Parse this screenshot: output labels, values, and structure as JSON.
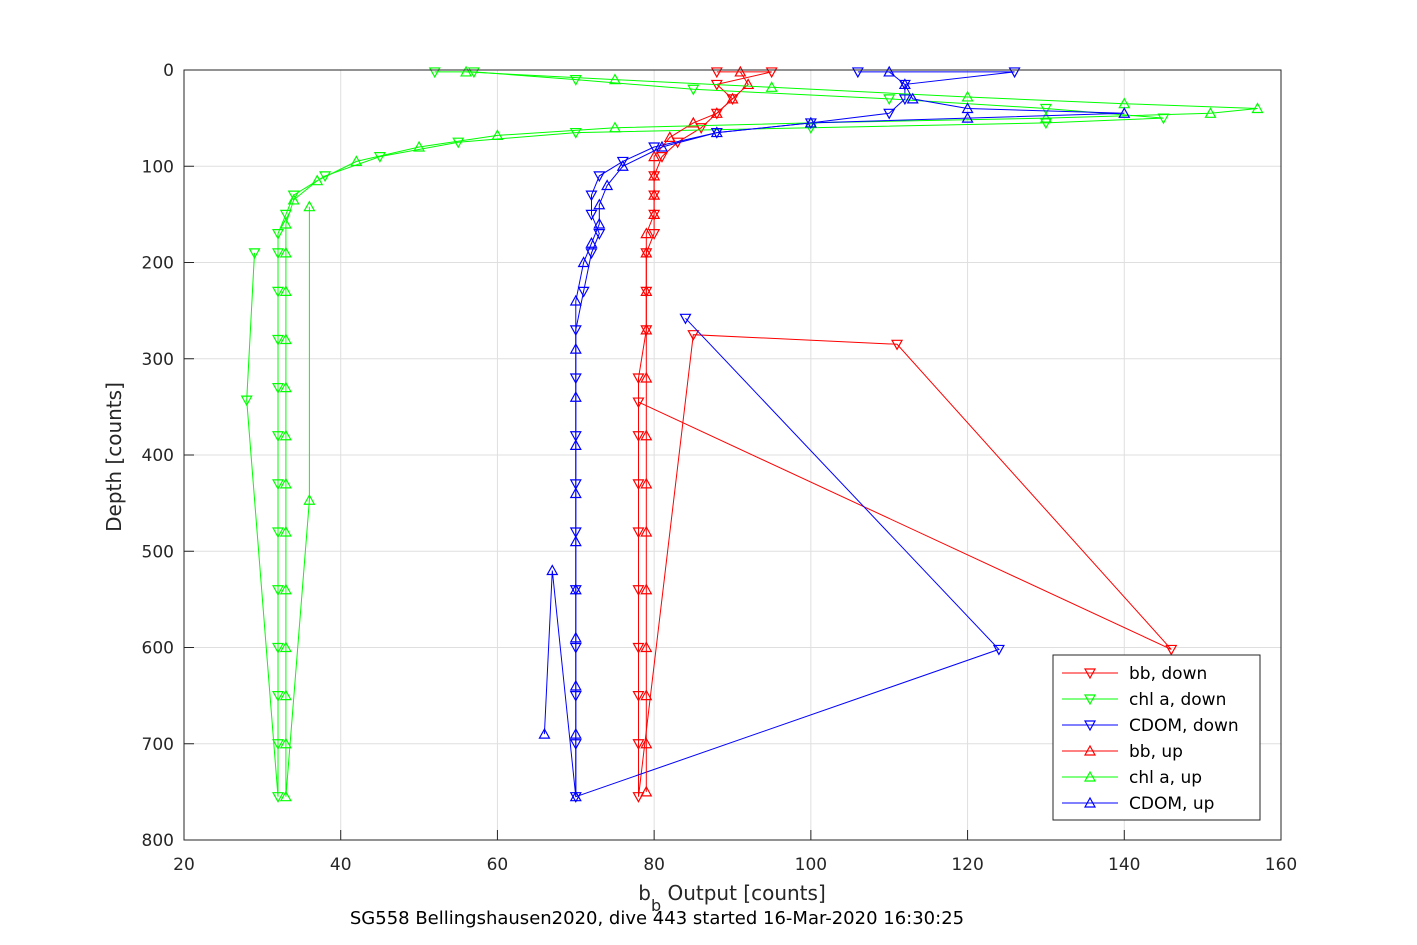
{
  "chart_data": {
    "type": "scatter",
    "title": "",
    "xlabel_main": "b",
    "xlabel_sub": "b",
    "xlabel_rest": " Output [counts]",
    "ylabel": "Depth [counts]",
    "caption": "SG558 Bellingshausen2020, dive 443 started 16-Mar-2020 16:30:25",
    "xlim": [
      20,
      160
    ],
    "ylim": [
      0,
      800
    ],
    "y_reversed": true,
    "grid": true,
    "xticks": [
      "20",
      "40",
      "60",
      "80",
      "100",
      "120",
      "140",
      "160"
    ],
    "yticks": [
      "0",
      "100",
      "200",
      "300",
      "400",
      "500",
      "600",
      "700",
      "800"
    ],
    "legend_position": "bottom-right",
    "series": [
      {
        "name": "bb, down",
        "color": "#ff0000",
        "marker": "triangle-down",
        "points": [
          [
            88,
            2
          ],
          [
            95,
            2
          ],
          [
            88,
            15
          ],
          [
            90,
            30
          ],
          [
            88,
            45
          ],
          [
            86,
            60
          ],
          [
            83,
            75
          ],
          [
            81,
            90
          ],
          [
            80,
            110
          ],
          [
            80,
            130
          ],
          [
            80,
            150
          ],
          [
            80,
            170
          ],
          [
            79,
            190
          ],
          [
            79,
            230
          ],
          [
            79,
            270
          ],
          [
            78,
            320
          ],
          [
            78,
            380
          ],
          [
            78,
            430
          ],
          [
            78,
            480
          ],
          [
            78,
            540
          ],
          [
            78,
            600
          ],
          [
            78,
            650
          ],
          [
            78,
            700
          ],
          [
            78,
            755
          ],
          [
            85,
            275
          ],
          [
            111,
            285
          ],
          [
            146,
            602
          ],
          [
            78,
            345
          ]
        ]
      },
      {
        "name": "chl a, down",
        "color": "#00ff00",
        "marker": "triangle-down",
        "points": [
          [
            52,
            2
          ],
          [
            57,
            2
          ],
          [
            70,
            10
          ],
          [
            85,
            20
          ],
          [
            110,
            30
          ],
          [
            130,
            40
          ],
          [
            145,
            50
          ],
          [
            130,
            55
          ],
          [
            100,
            60
          ],
          [
            70,
            65
          ],
          [
            55,
            75
          ],
          [
            45,
            90
          ],
          [
            38,
            110
          ],
          [
            34,
            130
          ],
          [
            33,
            150
          ],
          [
            32,
            170
          ],
          [
            32,
            190
          ],
          [
            32,
            230
          ],
          [
            32,
            280
          ],
          [
            32,
            330
          ],
          [
            32,
            380
          ],
          [
            32,
            430
          ],
          [
            32,
            480
          ],
          [
            32,
            540
          ],
          [
            32,
            600
          ],
          [
            32,
            650
          ],
          [
            32,
            700
          ],
          [
            32,
            755
          ],
          [
            28,
            343
          ],
          [
            29,
            190
          ]
        ]
      },
      {
        "name": "CDOM, down",
        "color": "#0000ff",
        "marker": "triangle-down",
        "points": [
          [
            106,
            2
          ],
          [
            126,
            2
          ],
          [
            112,
            15
          ],
          [
            112,
            30
          ],
          [
            110,
            45
          ],
          [
            100,
            55
          ],
          [
            88,
            65
          ],
          [
            80,
            80
          ],
          [
            76,
            95
          ],
          [
            73,
            110
          ],
          [
            72,
            130
          ],
          [
            72,
            150
          ],
          [
            73,
            170
          ],
          [
            72,
            190
          ],
          [
            71,
            230
          ],
          [
            70,
            270
          ],
          [
            70,
            320
          ],
          [
            70,
            380
          ],
          [
            70,
            430
          ],
          [
            70,
            480
          ],
          [
            70,
            540
          ],
          [
            70,
            600
          ],
          [
            70,
            650
          ],
          [
            70,
            700
          ],
          [
            70,
            755
          ],
          [
            124,
            602
          ],
          [
            84,
            258
          ]
        ]
      },
      {
        "name": "bb, up",
        "color": "#ff0000",
        "marker": "triangle-up",
        "points": [
          [
            91,
            2
          ],
          [
            92,
            15
          ],
          [
            90,
            30
          ],
          [
            88,
            45
          ],
          [
            85,
            55
          ],
          [
            82,
            70
          ],
          [
            80,
            90
          ],
          [
            80,
            110
          ],
          [
            80,
            130
          ],
          [
            80,
            150
          ],
          [
            79,
            170
          ],
          [
            79,
            190
          ],
          [
            79,
            230
          ],
          [
            79,
            270
          ],
          [
            79,
            320
          ],
          [
            79,
            380
          ],
          [
            79,
            430
          ],
          [
            79,
            480
          ],
          [
            79,
            540
          ],
          [
            79,
            600
          ],
          [
            79,
            650
          ],
          [
            79,
            700
          ],
          [
            79,
            750
          ]
        ]
      },
      {
        "name": "chl a, up",
        "color": "#00ff00",
        "marker": "triangle-up",
        "points": [
          [
            56,
            2
          ],
          [
            75,
            10
          ],
          [
            95,
            18
          ],
          [
            120,
            28
          ],
          [
            140,
            35
          ],
          [
            157,
            40
          ],
          [
            151,
            45
          ],
          [
            130,
            50
          ],
          [
            100,
            55
          ],
          [
            75,
            60
          ],
          [
            60,
            68
          ],
          [
            50,
            80
          ],
          [
            42,
            95
          ],
          [
            37,
            115
          ],
          [
            34,
            135
          ],
          [
            33,
            160
          ],
          [
            33,
            190
          ],
          [
            33,
            230
          ],
          [
            33,
            280
          ],
          [
            33,
            330
          ],
          [
            33,
            380
          ],
          [
            33,
            430
          ],
          [
            33,
            480
          ],
          [
            33,
            540
          ],
          [
            33,
            600
          ],
          [
            33,
            650
          ],
          [
            33,
            700
          ],
          [
            33,
            755
          ],
          [
            36,
            447
          ],
          [
            36,
            142
          ]
        ]
      },
      {
        "name": "CDOM, up",
        "color": "#0000ff",
        "marker": "triangle-up",
        "points": [
          [
            110,
            2
          ],
          [
            112,
            15
          ],
          [
            113,
            30
          ],
          [
            120,
            40
          ],
          [
            140,
            45
          ],
          [
            120,
            50
          ],
          [
            100,
            55
          ],
          [
            88,
            65
          ],
          [
            81,
            80
          ],
          [
            76,
            100
          ],
          [
            74,
            120
          ],
          [
            73,
            140
          ],
          [
            73,
            160
          ],
          [
            72,
            180
          ],
          [
            71,
            200
          ],
          [
            70,
            240
          ],
          [
            70,
            290
          ],
          [
            70,
            340
          ],
          [
            70,
            390
          ],
          [
            70,
            440
          ],
          [
            70,
            490
          ],
          [
            70,
            540
          ],
          [
            70,
            590
          ],
          [
            70,
            640
          ],
          [
            70,
            690
          ],
          [
            70,
            755
          ],
          [
            67,
            520
          ],
          [
            66,
            690
          ]
        ]
      }
    ]
  }
}
